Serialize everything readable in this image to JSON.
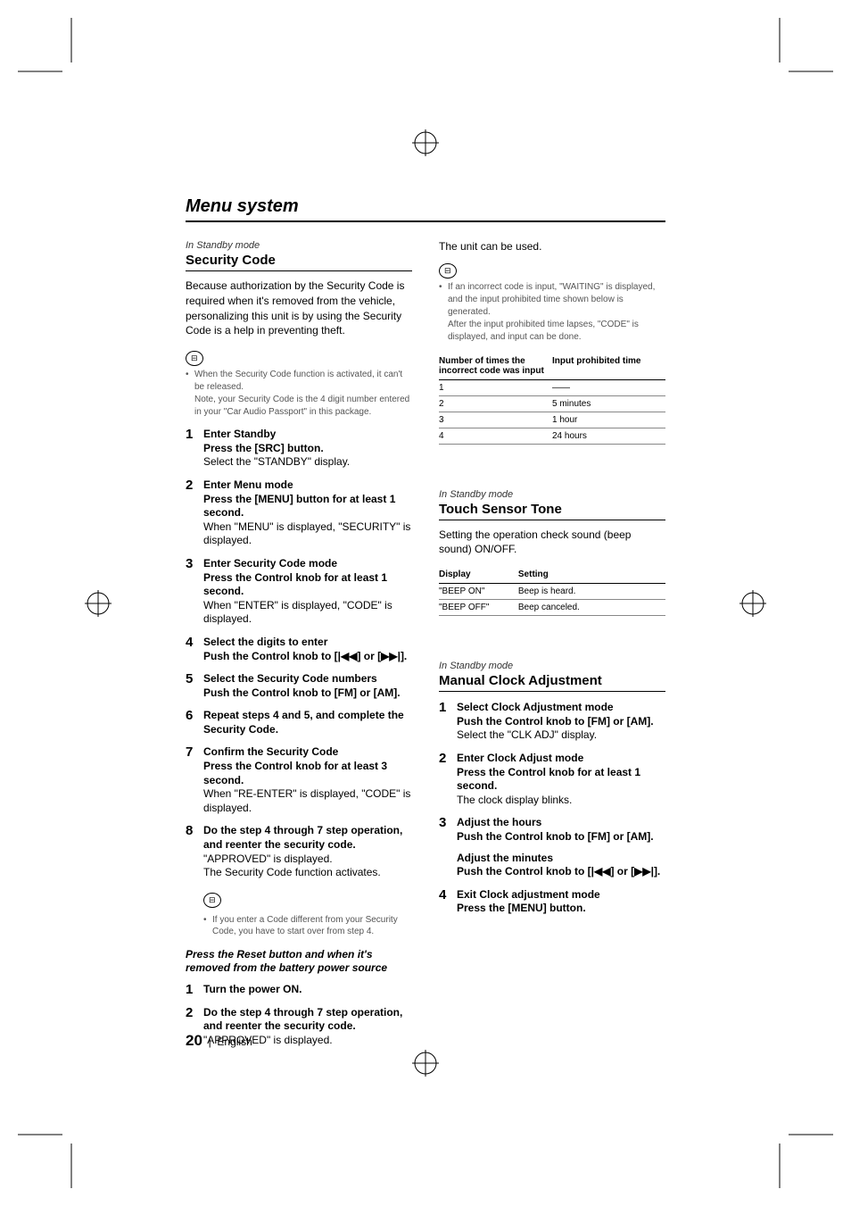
{
  "section_title": "Menu system",
  "page_number": "20",
  "page_lang": "English",
  "standby_label": "In Standby mode",
  "security": {
    "title": "Security Code",
    "intro": "Because authorization by the Security Code is required when it's removed from the vehicle, personalizing this unit is by using the Security Code is a help in preventing theft.",
    "note1_a": "When the Security Code function is activated, it can't be released.",
    "note1_b": "Note, your Security Code is the 4 digit number entered in your \"Car Audio Passport\" in this package.",
    "steps": [
      {
        "n": "1",
        "title": "Enter Standby",
        "instr": "Press the [SRC] button.",
        "desc": "Select the \"STANDBY\" display."
      },
      {
        "n": "2",
        "title": "Enter Menu mode",
        "instr": "Press the [MENU] button for at least 1 second.",
        "desc": "When \"MENU\" is displayed, \"SECURITY\" is displayed."
      },
      {
        "n": "3",
        "title": "Enter Security Code mode",
        "instr": "Press the Control knob for at least 1 second.",
        "desc": "When \"ENTER\" is displayed, \"CODE\" is displayed."
      },
      {
        "n": "4",
        "title": "Select the digits to enter",
        "instr": "Push the Control knob to [|◀◀] or [▶▶|].",
        "desc": ""
      },
      {
        "n": "5",
        "title": "Select the Security Code numbers",
        "instr": "Push the Control knob to [FM] or [AM].",
        "desc": ""
      },
      {
        "n": "6",
        "title": "Repeat steps 4 and 5, and complete the Security Code.",
        "instr": "",
        "desc": ""
      },
      {
        "n": "7",
        "title": "Confirm the Security Code",
        "instr": "Press the Control knob for at least 3 second.",
        "desc": "When \"RE-ENTER\" is displayed, \"CODE\" is displayed."
      },
      {
        "n": "8",
        "title": "Do the step 4 through 7 step operation, and reenter the security code.",
        "instr": "",
        "desc": "\"APPROVED\" is displayed.",
        "desc2": "The Security Code function activates."
      }
    ],
    "note2": "If you enter a Code different from your Security Code, you have to start over from step 4.",
    "reset_heading": "Press the Reset button and when it's removed from the battery power source",
    "reset_steps": [
      {
        "n": "1",
        "title": "Turn the power ON.",
        "instr": "",
        "desc": ""
      },
      {
        "n": "2",
        "title": "Do the step 4 through 7 step operation, and reenter the security code.",
        "instr": "",
        "desc": "\"APPROVED\" is displayed."
      }
    ],
    "col2_top": "The unit can be used.",
    "col2_note_a": "If an incorrect code is input, \"WAITING\" is displayed, and the input prohibited time shown below is generated.",
    "col2_note_b": "After the input prohibited time lapses, \"CODE\" is displayed, and input can be done.",
    "table_h1": "Number of times the incorrect code was input",
    "table_h2": "Input prohibited time",
    "table_rows": [
      [
        "1",
        "——"
      ],
      [
        "2",
        "5 minutes"
      ],
      [
        "3",
        "1 hour"
      ],
      [
        "4",
        "24 hours"
      ]
    ]
  },
  "touch": {
    "title": "Touch Sensor Tone",
    "intro": "Setting the operation check sound (beep sound) ON/OFF.",
    "h1": "Display",
    "h2": "Setting",
    "rows": [
      [
        "\"BEEP ON\"",
        "Beep is heard."
      ],
      [
        "\"BEEP OFF\"",
        "Beep canceled."
      ]
    ]
  },
  "clock": {
    "title": "Manual Clock Adjustment",
    "steps": [
      {
        "n": "1",
        "title": "Select Clock Adjustment mode",
        "instr": "Push the Control knob to [FM] or [AM].",
        "desc": "Select the \"CLK ADJ\" display."
      },
      {
        "n": "2",
        "title": "Enter Clock Adjust mode",
        "instr": "Press the Control knob for at least 1 second.",
        "desc": "The clock display blinks."
      },
      {
        "n": "3",
        "title": "Adjust the hours",
        "instr": "Push the Control knob to [FM] or [AM].",
        "desc": "",
        "title2": "Adjust the minutes",
        "instr2": "Push the Control knob to [|◀◀] or [▶▶|]."
      },
      {
        "n": "4",
        "title": "Exit Clock adjustment mode",
        "instr": "Press the [MENU] button.",
        "desc": ""
      }
    ]
  }
}
